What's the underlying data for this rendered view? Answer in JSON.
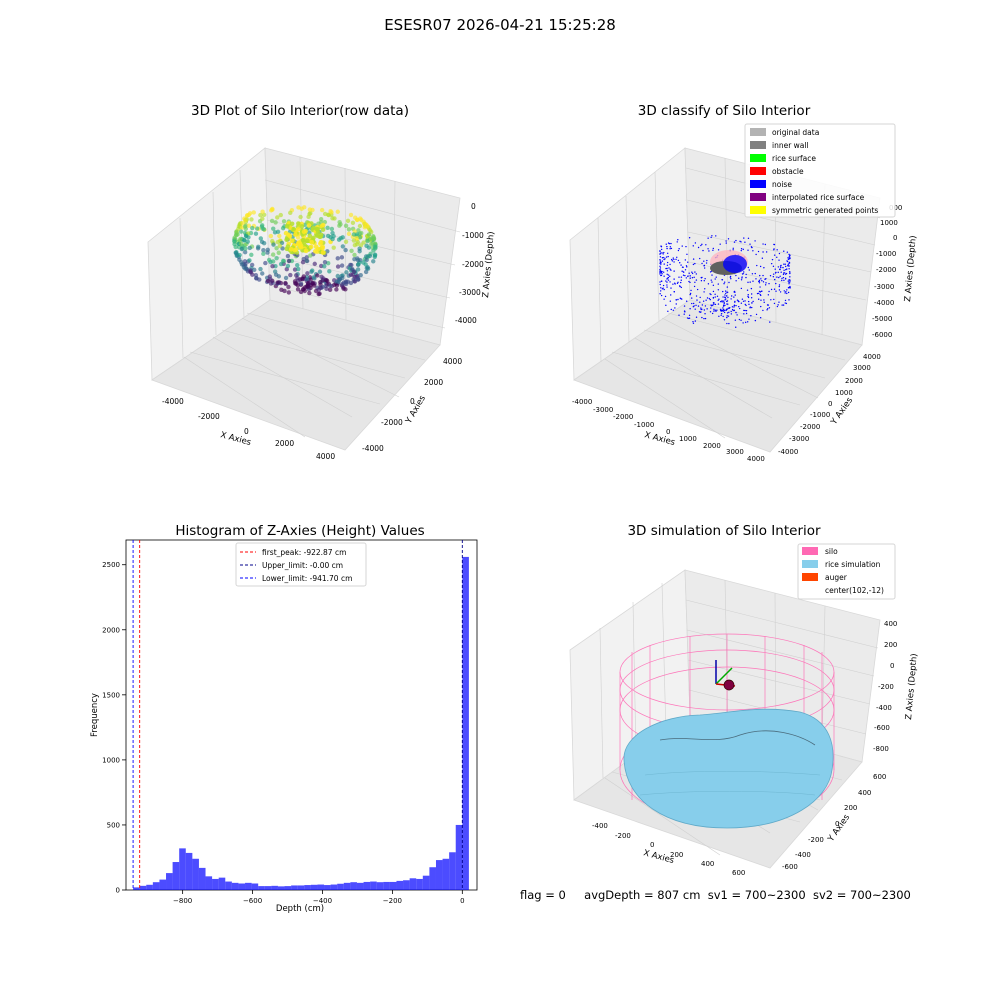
{
  "figure": {
    "suptitle": "ESESR07 2026-04-21 15:25:28",
    "status": {
      "flag": "flag = 0",
      "avg_depth": "avgDepth = 807 cm",
      "sv1": "sv1 = 700~2300",
      "sv2": "sv2 = 700~2300"
    }
  },
  "chart_data": [
    {
      "type": "scatter",
      "title": "3D Plot of Silo Interior(row data)",
      "xlabel": "X Axies",
      "ylabel": "Y Axies",
      "zlabel": "Z Axies (Depth)",
      "x_ticks": [
        "-4000",
        "-2000",
        "0",
        "2000",
        "4000"
      ],
      "y_ticks": [
        "-4000",
        "-2000",
        "0",
        "2000",
        "4000"
      ],
      "z_ticks": [
        "0",
        "-1000",
        "-2000",
        "-3000",
        "-4000"
      ],
      "xlim": [
        -4700,
        4700
      ],
      "ylim": [
        -4700,
        4700
      ],
      "zlim": [
        -4800,
        300
      ],
      "colormap": "viridis (by depth)",
      "grid": true
    },
    {
      "type": "scatter",
      "title": "3D classify of Silo Interior",
      "xlabel": "X Axies",
      "ylabel": "Y Axies",
      "zlabel": "Z Axies (Depth)",
      "x_ticks": [
        "-4000",
        "-3000",
        "-2000",
        "-1000",
        "0",
        "1000",
        "2000",
        "3000",
        "4000"
      ],
      "y_ticks": [
        "-4000",
        "-3000",
        "-2000",
        "-1000",
        "0",
        "1000",
        "2000",
        "3000",
        "4000"
      ],
      "z_ticks": [
        "1000",
        "0",
        "-1000",
        "-2000",
        "-3000",
        "-4000",
        "-5000",
        "-6000"
      ],
      "z_top_partial": "000",
      "legend_position": "top-right",
      "legend": [
        {
          "label": "original data",
          "color": "#b3b3b3"
        },
        {
          "label": "inner wall",
          "color": "#808080"
        },
        {
          "label": "rice surface",
          "color": "#00ff00"
        },
        {
          "label": "obstacle",
          "color": "#ff0000"
        },
        {
          "label": "noise",
          "color": "#0000ff"
        },
        {
          "label": "interpolated rice surface",
          "color": "#800080"
        },
        {
          "label": "symmetric generated points",
          "color": "#ffff00"
        }
      ],
      "grid": true
    },
    {
      "type": "bar",
      "title": "Histogram of Z-Axies (Height) Values",
      "xlabel": "Depth (cm)",
      "ylabel": "Frequency",
      "xlim": [
        -962,
        42
      ],
      "ylim": [
        0,
        2690
      ],
      "x_ticks": [
        -800,
        -600,
        -400,
        -200,
        0
      ],
      "y_ticks": [
        0,
        500,
        1000,
        1500,
        2000,
        2500
      ],
      "bin_start": -941.7,
      "bin_width": 18.834,
      "values": [
        20,
        32,
        40,
        60,
        80,
        130,
        215,
        320,
        285,
        240,
        170,
        105,
        85,
        95,
        65,
        55,
        50,
        55,
        50,
        30,
        30,
        32,
        28,
        30,
        35,
        35,
        38,
        40,
        42,
        38,
        42,
        48,
        55,
        60,
        55,
        62,
        65,
        60,
        62,
        62,
        70,
        75,
        90,
        85,
        110,
        175,
        230,
        240,
        290,
        500,
        2560
      ],
      "bar_color": "#0000ff",
      "bar_alpha": 0.7,
      "legend_position": "upper center",
      "vlines": [
        {
          "label": "first_peak: -922.87 cm",
          "x": -922.87,
          "color": "#ff0000"
        },
        {
          "label": "Upper_limit: -0.00 cm",
          "x": -0.0,
          "color": "#00008b"
        },
        {
          "label": "Lower_limit: -941.70 cm",
          "x": -941.7,
          "color": "#0000ff"
        }
      ]
    },
    {
      "type": "surface",
      "title": "3D simulation of Silo Interior",
      "xlabel": "X Axies",
      "ylabel": "Y Axies",
      "zlabel": "Z Axies (Depth)",
      "x_ticks": [
        "-400",
        "-200",
        "0",
        "200",
        "400",
        "600"
      ],
      "y_ticks": [
        "600",
        "400",
        "200",
        "0",
        "-200",
        "-400",
        "-600"
      ],
      "z_ticks": [
        "400",
        "200",
        "0",
        "-200",
        "-400",
        "-600",
        "-800"
      ],
      "legend_position": "top-right",
      "legend": [
        {
          "label": "silo",
          "color": "#ff69b4"
        },
        {
          "label": "rice simulation",
          "color": "#87ceeb"
        },
        {
          "label": "auger",
          "color": "#ff4500"
        },
        {
          "label": "center(102,-12)",
          "color": ""
        }
      ],
      "grid": true
    }
  ]
}
